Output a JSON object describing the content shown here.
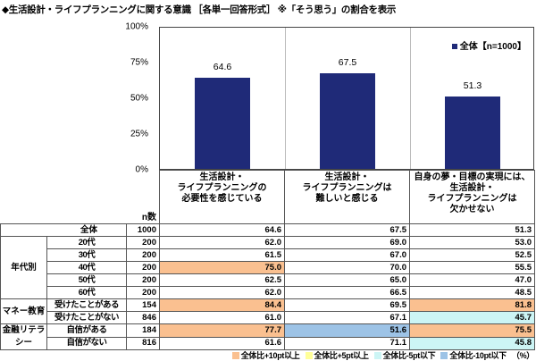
{
  "title": "◆生活設計・ライフプランニングに関する意識 ［各単一回答形式］ ※「そう思う」の割合を表示",
  "chart_data": {
    "type": "bar",
    "categories": [
      "生活設計・ライフプランニングの必要性を感じている",
      "生活設計・ライフプランニングは難しいと感じる",
      "自身の夢・目標の実現には、生活設計・ライフプランニングは欠かせない"
    ],
    "series": [
      {
        "name": "全体【n=1000】",
        "values": [
          64.6,
          67.5,
          51.3
        ],
        "color": "#1f2a78"
      }
    ],
    "yticks": [
      "0%",
      "25%",
      "50%",
      "75%",
      "100%"
    ],
    "ylim": [
      0,
      100
    ],
    "legend": "top-right"
  },
  "table": {
    "n_header": "n数",
    "col_headers": [
      [
        "生活設計・",
        "ライフプランニングの",
        "必要性を感じている"
      ],
      [
        "生活設計・",
        "ライフプランニングは",
        "難しいと感じる"
      ],
      [
        "自身の夢・目標の実現には、",
        "生活設計・",
        "ライフプランニングは",
        "欠かせない"
      ]
    ],
    "total": {
      "label": "全体",
      "n": "1000",
      "values": [
        "64.6",
        "67.5",
        "51.3"
      ]
    },
    "groups": [
      {
        "label": "年代別",
        "rows": [
          {
            "label": "20代",
            "n": "200",
            "values": [
              "62.0",
              "69.0",
              "53.0"
            ],
            "hl": [
              "",
              "",
              ""
            ]
          },
          {
            "label": "30代",
            "n": "200",
            "values": [
              "61.5",
              "67.0",
              "52.5"
            ],
            "hl": [
              "",
              "",
              ""
            ]
          },
          {
            "label": "40代",
            "n": "200",
            "values": [
              "75.0",
              "70.0",
              "55.5"
            ],
            "hl": [
              "o",
              "",
              ""
            ]
          },
          {
            "label": "50代",
            "n": "200",
            "values": [
              "62.5",
              "65.0",
              "47.0"
            ],
            "hl": [
              "",
              "",
              ""
            ]
          },
          {
            "label": "60代",
            "n": "200",
            "values": [
              "62.0",
              "66.5",
              "48.5"
            ],
            "hl": [
              "",
              "",
              ""
            ]
          }
        ]
      },
      {
        "label": "マネー教育",
        "rows": [
          {
            "label": "受けたことがある",
            "n": "154",
            "values": [
              "84.4",
              "69.5",
              "81.8"
            ],
            "hl": [
              "o",
              "",
              "o"
            ]
          },
          {
            "label": "受けたことがない",
            "n": "846",
            "values": [
              "61.0",
              "67.1",
              "45.7"
            ],
            "hl": [
              "",
              "",
              "c"
            ]
          }
        ]
      },
      {
        "label": "金融リテラシー",
        "rows": [
          {
            "label": "自信がある",
            "n": "184",
            "values": [
              "77.7",
              "51.6",
              "75.5"
            ],
            "hl": [
              "o",
              "b",
              "o"
            ]
          },
          {
            "label": "自信がない",
            "n": "816",
            "values": [
              "61.6",
              "71.1",
              "45.8"
            ],
            "hl": [
              "",
              "",
              "c"
            ]
          }
        ]
      }
    ]
  },
  "highlight_legend": [
    {
      "label": "全体比+10pt以上",
      "color": "#fac090"
    },
    {
      "label": "全体比+5pt以上",
      "color": "#ffff99"
    },
    {
      "label": "全体比-5pt以下",
      "color": "#ccf5f5"
    },
    {
      "label": "全体比-10pt以下",
      "color": "#9dc3e6"
    }
  ],
  "unit": "（%）"
}
